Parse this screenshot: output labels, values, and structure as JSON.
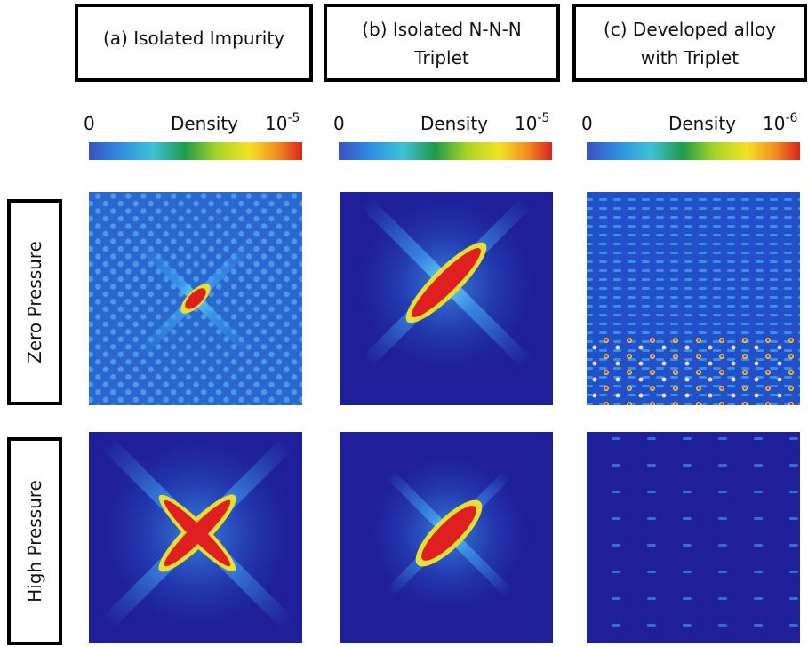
{
  "columns": [
    {
      "header": [
        "(a) Isolated Impurity"
      ],
      "colorbar": {
        "min": "0",
        "label": "Density",
        "max_base": "10",
        "max_exp": "-5"
      }
    },
    {
      "header": [
        "(b) Isolated N-N-N",
        "Triplet"
      ],
      "colorbar": {
        "min": "0",
        "label": "Density",
        "max_base": "10",
        "max_exp": "-5"
      }
    },
    {
      "header": [
        "(c) Developed alloy",
        "with Triplet"
      ],
      "colorbar": {
        "min": "0",
        "label": "Density",
        "max_base": "10",
        "max_exp": "-6"
      }
    }
  ],
  "rows": [
    "Zero Pressure",
    "High Pressure"
  ]
}
